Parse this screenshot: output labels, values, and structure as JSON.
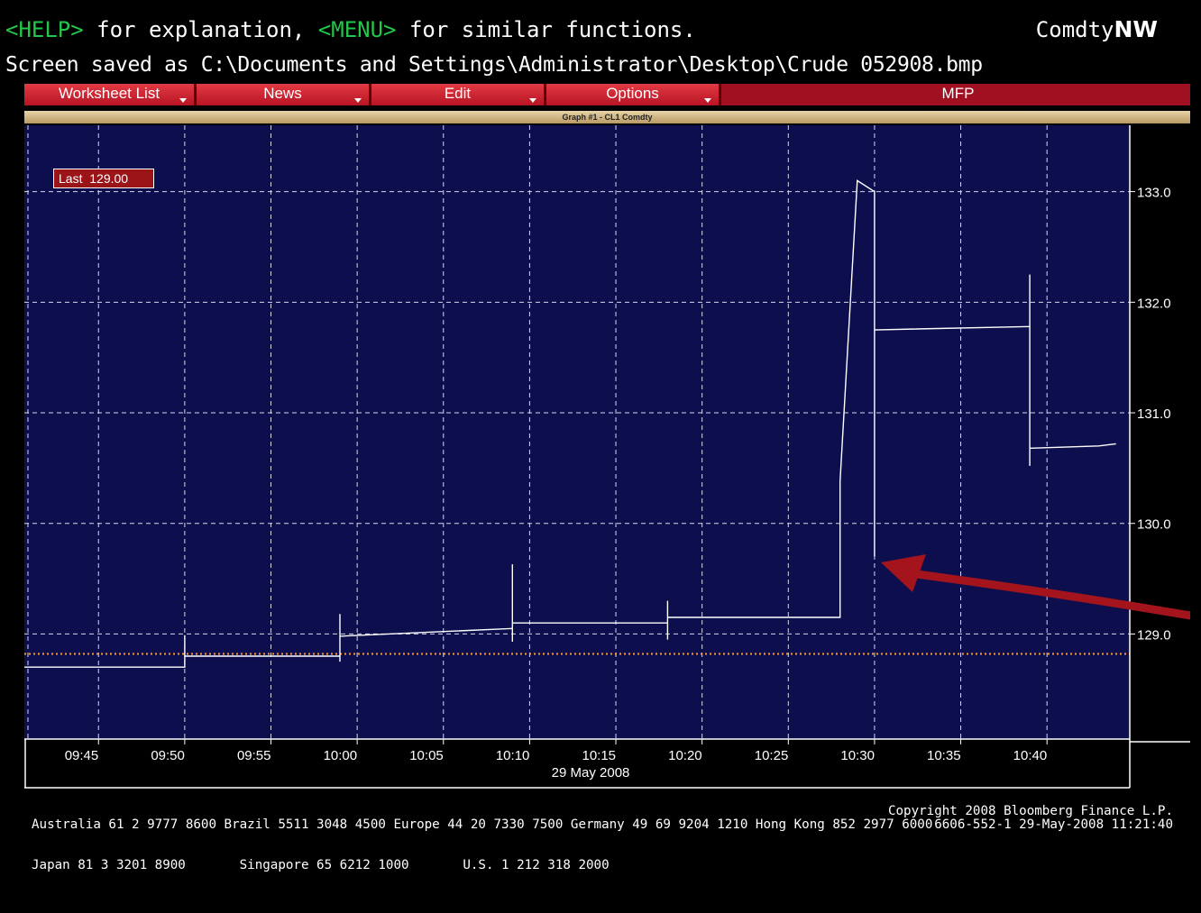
{
  "header": {
    "help_tag": "<HELP>",
    "help_text": " for explanation, ",
    "menu_tag": "<MENU>",
    "menu_text": " for similar functions.",
    "right_label": "Comdty",
    "right_bold": "NW",
    "saved_line": "Screen saved as C:\\Documents and Settings\\Administrator\\Desktop\\Crude 052908.bmp"
  },
  "menubar": {
    "items": [
      "Worksheet List",
      "News",
      "Edit",
      "Options"
    ],
    "mfp_label": "MFP"
  },
  "graph": {
    "title": "Graph #1 - CL1 Comdty",
    "last_label": "Last",
    "last_value": "129.00",
    "date_label": "29 May 2008"
  },
  "colors": {
    "plot_bg": "#0c0e4e",
    "accent_red": "#a01020",
    "dotted_line": "#ff9a30",
    "arrow": "#a3141c"
  },
  "chart_data": {
    "type": "line",
    "x_ticks": [
      "09:45",
      "09:50",
      "09:55",
      "10:00",
      "10:05",
      "10:10",
      "10:15",
      "10:20",
      "10:25",
      "10:30",
      "10:35",
      "10:40"
    ],
    "y_ticks": [
      "129.0",
      "130.0",
      "131.0",
      "132.0",
      "133.0"
    ],
    "ylim": [
      128.05,
      133.6
    ],
    "reference_line": 128.82,
    "series": [
      {
        "values": [
          [
            "09:40",
            128.6
          ],
          [
            "09:40",
            128.5
          ],
          [
            "09:40",
            128.95
          ],
          [
            "09:40",
            128.7
          ],
          [
            "09:50",
            128.7
          ],
          [
            "09:50",
            128.99
          ],
          [
            "09:50",
            128.8
          ],
          [
            "09:59",
            128.8
          ],
          [
            "09:59",
            128.75
          ],
          [
            "09:59",
            129.18
          ],
          [
            "09:59",
            128.98
          ],
          [
            "10:09",
            129.05
          ],
          [
            "10:09",
            128.93
          ],
          [
            "10:09",
            129.63
          ],
          [
            "10:09",
            129.1
          ],
          [
            "10:18",
            129.1
          ],
          [
            "10:18",
            128.95
          ],
          [
            "10:18",
            129.3
          ],
          [
            "10:18",
            129.15
          ],
          [
            "10:28",
            129.15
          ],
          [
            "10:28",
            130.38
          ],
          [
            "10:29",
            133.1
          ],
          [
            "10:30",
            133.0
          ],
          [
            "10:30",
            129.7
          ],
          [
            "10:30",
            131.75
          ],
          [
            "10:39",
            131.78
          ],
          [
            "10:39",
            130.52
          ],
          [
            "10:39",
            132.25
          ],
          [
            "10:39",
            130.68
          ],
          [
            "10:43",
            130.7
          ],
          [
            "10:44",
            130.72
          ]
        ]
      }
    ]
  },
  "footer": {
    "line1": "Australia 61 2 9777 8600 Brazil 5511 3048 4500 Europe 44 20 7330 7500 Germany 49 69 9204 1210 Hong Kong 852 2977 6000",
    "line2_left": "Japan 81 3 3201 8900       Singapore 65 6212 1000       U.S. 1 212 318 2000",
    "line2_right": "Copyright 2008 Bloomberg Finance L.P.",
    "line3_right": "6606-552-1 29-May-2008 11:21:40"
  }
}
